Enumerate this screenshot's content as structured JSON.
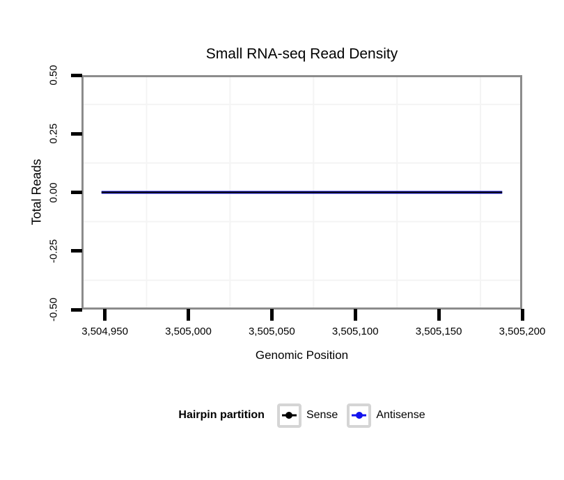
{
  "chart_data": {
    "type": "line",
    "title": "Small RNA-seq Read Density",
    "xlabel": "Genomic Position",
    "ylabel": "Total Reads",
    "xlim": [
      3504936,
      3505200
    ],
    "ylim": [
      -0.5,
      0.5
    ],
    "x_ticks": [
      {
        "value": 3504950,
        "label": "3,504,950"
      },
      {
        "value": 3505000,
        "label": "3,505,000"
      },
      {
        "value": 3505050,
        "label": "3,505,050"
      },
      {
        "value": 3505100,
        "label": "3,505,100"
      },
      {
        "value": 3505150,
        "label": "3,505,150"
      },
      {
        "value": 3505200,
        "label": "3,505,200"
      }
    ],
    "y_ticks": [
      {
        "value": 0.5,
        "label": "0.50"
      },
      {
        "value": 0.25,
        "label": "0.25"
      },
      {
        "value": 0,
        "label": "0.00"
      },
      {
        "value": -0.25,
        "label": "-0.25"
      },
      {
        "value": -0.5,
        "label": "-0.50"
      }
    ],
    "grid": {
      "minor_only": true,
      "color": "#F4F4F4"
    },
    "series": [
      {
        "name": "Sense",
        "color": "#000000",
        "x": [
          3504948,
          3505188
        ],
        "y": [
          0,
          0
        ]
      },
      {
        "name": "Antisense",
        "color": "#1212EE",
        "x": [
          3504948,
          3505188
        ],
        "y": [
          0,
          0
        ]
      }
    ],
    "legend_position": "bottom"
  },
  "legend": {
    "title": "Hairpin partition",
    "items": [
      {
        "label": "Sense",
        "color": "#000000"
      },
      {
        "label": "Antisense",
        "color": "#1212EE"
      }
    ]
  },
  "style": {
    "panel_border_color": "#8C8C8C",
    "tick_color": "#000000",
    "grid_color": "#F4F4F4",
    "background": "#FFFFFF"
  }
}
